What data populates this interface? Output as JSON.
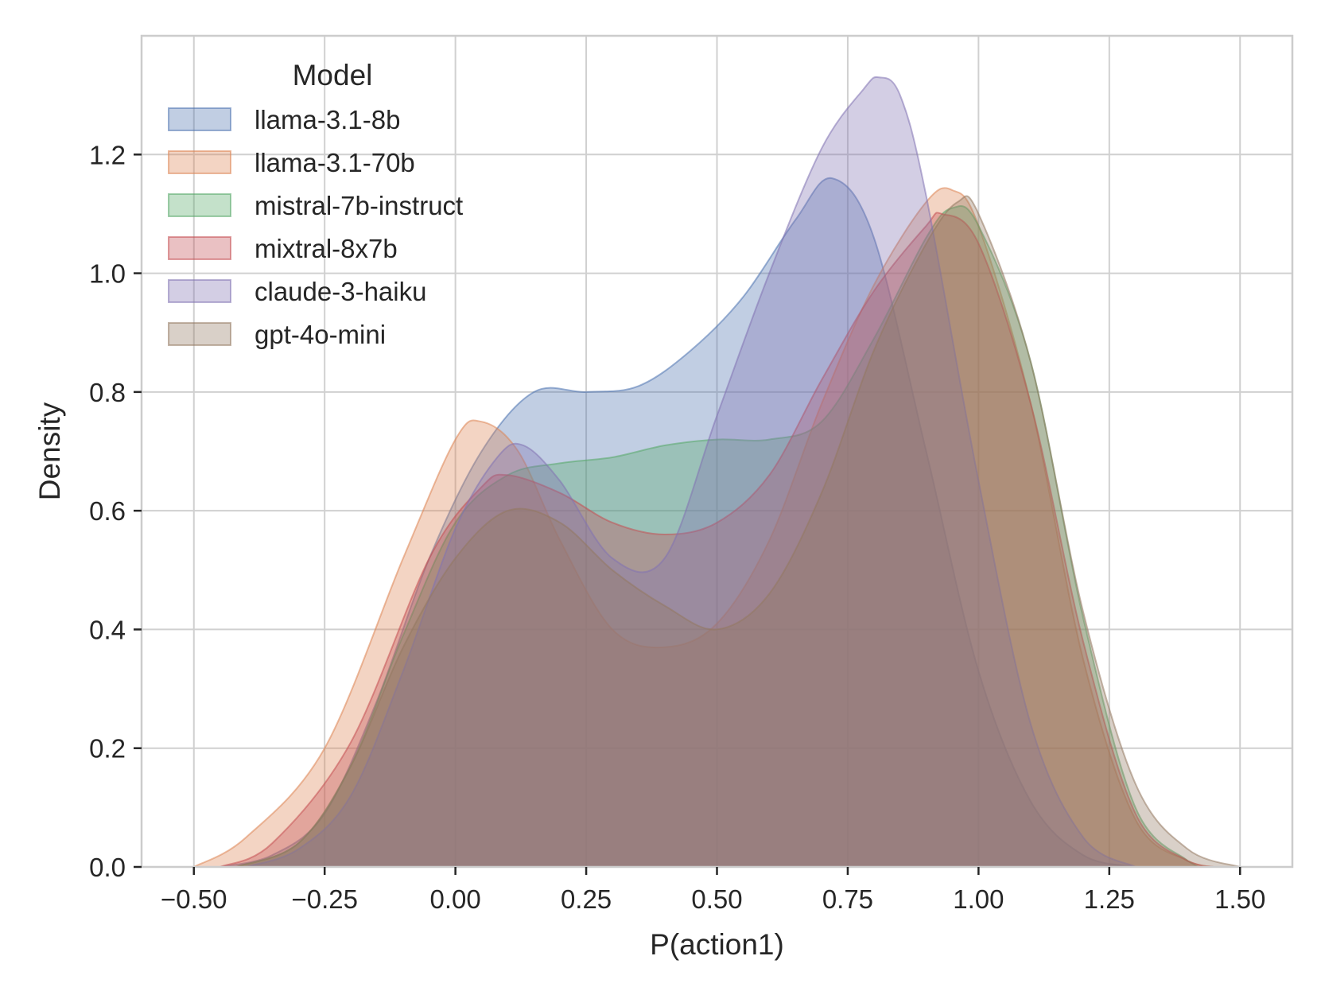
{
  "chart_data": {
    "type": "area",
    "kind": "kde-density",
    "title": "",
    "xlabel": "P(action1)",
    "ylabel": "Density",
    "xlim": [
      -0.6,
      1.6
    ],
    "ylim": [
      0,
      1.4
    ],
    "x_ticks": [
      "−0.50",
      "−0.25",
      "0.00",
      "0.25",
      "0.50",
      "0.75",
      "1.00",
      "1.25",
      "1.50"
    ],
    "x_tick_values": [
      -0.5,
      -0.25,
      0.0,
      0.25,
      0.5,
      0.75,
      1.0,
      1.25,
      1.5
    ],
    "y_ticks": [
      "0.0",
      "0.2",
      "0.4",
      "0.6",
      "0.8",
      "1.0",
      "1.2"
    ],
    "y_tick_values": [
      0.0,
      0.2,
      0.4,
      0.6,
      0.8,
      1.0,
      1.2
    ],
    "grid": true,
    "legend": {
      "title": "Model",
      "position": "top-left"
    },
    "fill_opacity": 0.35,
    "series": [
      {
        "name": "llama-3.1-8b",
        "color": "#4c72b0",
        "points": [
          [
            -0.45,
            0
          ],
          [
            -0.35,
            0.02
          ],
          [
            -0.25,
            0.09
          ],
          [
            -0.15,
            0.28
          ],
          [
            -0.05,
            0.52
          ],
          [
            0.05,
            0.7
          ],
          [
            0.15,
            0.8
          ],
          [
            0.25,
            0.8
          ],
          [
            0.35,
            0.81
          ],
          [
            0.45,
            0.87
          ],
          [
            0.55,
            0.96
          ],
          [
            0.65,
            1.09
          ],
          [
            0.72,
            1.16
          ],
          [
            0.8,
            1.06
          ],
          [
            0.9,
            0.7
          ],
          [
            1.0,
            0.33
          ],
          [
            1.1,
            0.11
          ],
          [
            1.2,
            0.02
          ],
          [
            1.3,
            0
          ]
        ]
      },
      {
        "name": "llama-3.1-70b",
        "color": "#dd8452",
        "points": [
          [
            -0.5,
            0
          ],
          [
            -0.4,
            0.05
          ],
          [
            -0.25,
            0.2
          ],
          [
            -0.1,
            0.52
          ],
          [
            0.0,
            0.72
          ],
          [
            0.05,
            0.75
          ],
          [
            0.12,
            0.7
          ],
          [
            0.2,
            0.55
          ],
          [
            0.3,
            0.4
          ],
          [
            0.4,
            0.37
          ],
          [
            0.5,
            0.41
          ],
          [
            0.6,
            0.55
          ],
          [
            0.7,
            0.78
          ],
          [
            0.8,
            0.98
          ],
          [
            0.9,
            1.12
          ],
          [
            0.95,
            1.14
          ],
          [
            1.0,
            1.08
          ],
          [
            1.1,
            0.78
          ],
          [
            1.2,
            0.35
          ],
          [
            1.3,
            0.08
          ],
          [
            1.4,
            0.01
          ],
          [
            1.45,
            0
          ]
        ]
      },
      {
        "name": "mistral-7b-instruct",
        "color": "#55a868",
        "points": [
          [
            -0.42,
            0
          ],
          [
            -0.3,
            0.04
          ],
          [
            -0.2,
            0.17
          ],
          [
            -0.1,
            0.39
          ],
          [
            0.0,
            0.58
          ],
          [
            0.1,
            0.66
          ],
          [
            0.2,
            0.68
          ],
          [
            0.3,
            0.69
          ],
          [
            0.4,
            0.71
          ],
          [
            0.5,
            0.72
          ],
          [
            0.6,
            0.72
          ],
          [
            0.7,
            0.75
          ],
          [
            0.8,
            0.89
          ],
          [
            0.9,
            1.06
          ],
          [
            0.95,
            1.11
          ],
          [
            1.0,
            1.08
          ],
          [
            1.1,
            0.85
          ],
          [
            1.2,
            0.42
          ],
          [
            1.3,
            0.1
          ],
          [
            1.4,
            0.01
          ],
          [
            1.42,
            0
          ]
        ]
      },
      {
        "name": "mixtral-8x7b",
        "color": "#c44e52",
        "points": [
          [
            -0.45,
            0
          ],
          [
            -0.35,
            0.04
          ],
          [
            -0.2,
            0.21
          ],
          [
            -0.05,
            0.52
          ],
          [
            0.05,
            0.64
          ],
          [
            0.1,
            0.66
          ],
          [
            0.2,
            0.63
          ],
          [
            0.3,
            0.58
          ],
          [
            0.4,
            0.56
          ],
          [
            0.5,
            0.58
          ],
          [
            0.6,
            0.66
          ],
          [
            0.7,
            0.82
          ],
          [
            0.8,
            0.97
          ],
          [
            0.9,
            1.08
          ],
          [
            0.93,
            1.1
          ],
          [
            1.0,
            1.05
          ],
          [
            1.1,
            0.78
          ],
          [
            1.2,
            0.38
          ],
          [
            1.3,
            0.09
          ],
          [
            1.4,
            0.01
          ],
          [
            1.45,
            0
          ]
        ]
      },
      {
        "name": "claude-3-haiku",
        "color": "#8172b3",
        "points": [
          [
            -0.4,
            0
          ],
          [
            -0.3,
            0.03
          ],
          [
            -0.2,
            0.12
          ],
          [
            -0.1,
            0.33
          ],
          [
            0.0,
            0.57
          ],
          [
            0.08,
            0.69
          ],
          [
            0.13,
            0.71
          ],
          [
            0.2,
            0.65
          ],
          [
            0.3,
            0.52
          ],
          [
            0.4,
            0.52
          ],
          [
            0.5,
            0.76
          ],
          [
            0.6,
            1.0
          ],
          [
            0.7,
            1.21
          ],
          [
            0.78,
            1.31
          ],
          [
            0.81,
            1.33
          ],
          [
            0.85,
            1.3
          ],
          [
            0.9,
            1.13
          ],
          [
            1.0,
            0.65
          ],
          [
            1.1,
            0.24
          ],
          [
            1.2,
            0.05
          ],
          [
            1.3,
            0
          ]
        ]
      },
      {
        "name": "gpt-4o-mini",
        "color": "#937860",
        "points": [
          [
            -0.42,
            0
          ],
          [
            -0.3,
            0.04
          ],
          [
            -0.2,
            0.17
          ],
          [
            -0.1,
            0.37
          ],
          [
            0.0,
            0.52
          ],
          [
            0.1,
            0.6
          ],
          [
            0.2,
            0.58
          ],
          [
            0.3,
            0.5
          ],
          [
            0.4,
            0.44
          ],
          [
            0.5,
            0.4
          ],
          [
            0.6,
            0.46
          ],
          [
            0.7,
            0.63
          ],
          [
            0.8,
            0.87
          ],
          [
            0.9,
            1.05
          ],
          [
            0.96,
            1.12
          ],
          [
            1.0,
            1.1
          ],
          [
            1.1,
            0.85
          ],
          [
            1.2,
            0.43
          ],
          [
            1.3,
            0.14
          ],
          [
            1.4,
            0.03
          ],
          [
            1.5,
            0
          ]
        ]
      }
    ]
  }
}
